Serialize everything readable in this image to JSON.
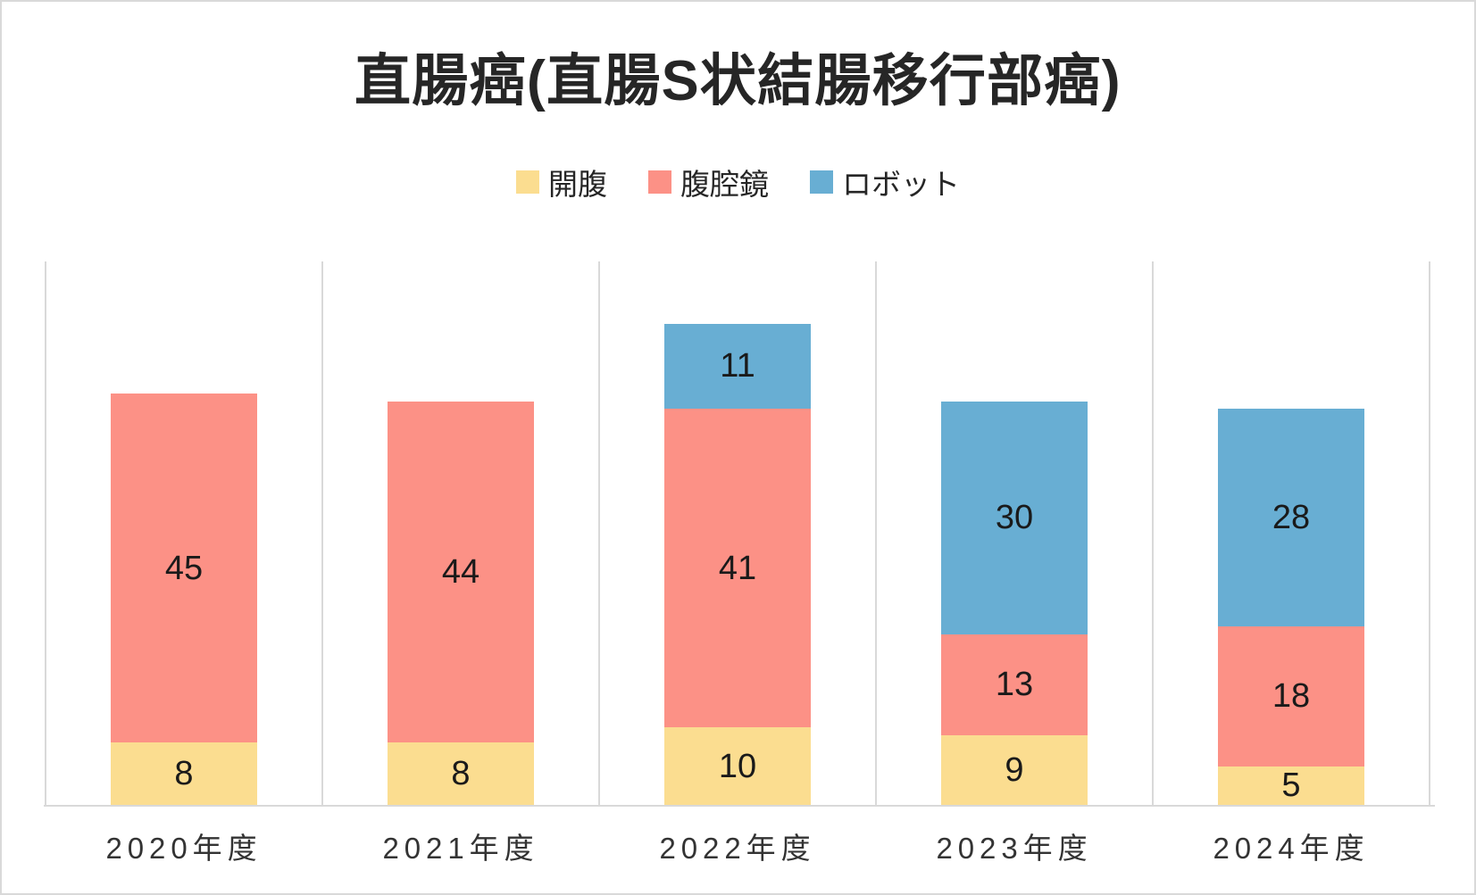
{
  "chart_data": {
    "type": "bar",
    "stacked": true,
    "title": "直腸癌(直腸S状結腸移行部癌)",
    "categories": [
      "2020年度",
      "2021年度",
      "2022年度",
      "2023年度",
      "2024年度"
    ],
    "series": [
      {
        "name": "開腹",
        "color": "#FBDD90",
        "values": [
          8,
          8,
          10,
          9,
          5
        ]
      },
      {
        "name": "腹腔鏡",
        "color": "#FC9186",
        "values": [
          45,
          44,
          41,
          13,
          18
        ]
      },
      {
        "name": "ロボット",
        "color": "#68AED3",
        "values": [
          0,
          0,
          11,
          30,
          28
        ]
      }
    ],
    "totals": [
      53,
      52,
      62,
      52,
      51
    ],
    "ylim": [
      0,
      70
    ],
    "xlabel": "",
    "ylabel": "",
    "grid": "vertical panel separators only, no horizontal gridlines, no y-axis labels",
    "legend_position": "top-center",
    "data_labels": "value shown centered inside each segment; zero values not drawn"
  },
  "colors": {
    "background": "#FFFFFF",
    "frame_border": "#D9D9D9",
    "gridline": "#D9D9D9",
    "title_text": "#262626",
    "data_label_text": "#1A1A1A",
    "axis_label_text": "#333333"
  }
}
